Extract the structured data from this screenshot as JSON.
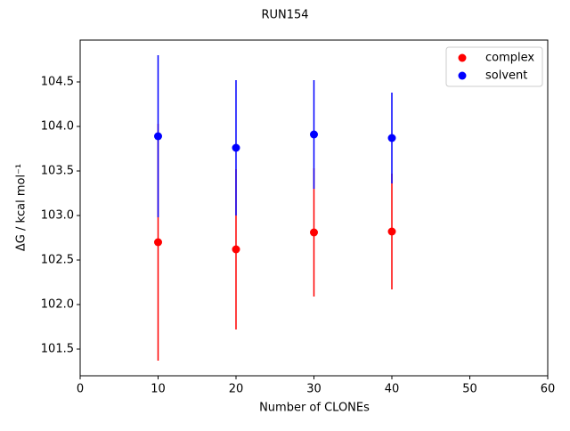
{
  "chart_data": {
    "type": "scatter",
    "title": "RUN154",
    "x_label": "Number of CLONEs",
    "y_label": "ΔG / kcal mol⁻¹",
    "x": [
      10,
      20,
      30,
      40
    ],
    "series": [
      {
        "name": "complex",
        "color": "#ff0000",
        "values": [
          102.7,
          102.62,
          102.81,
          102.82
        ],
        "errors": [
          1.33,
          0.9,
          0.72,
          0.65
        ]
      },
      {
        "name": "solvent",
        "color": "#0000ff",
        "values": [
          103.89,
          103.76,
          103.91,
          103.87
        ],
        "errors": [
          0.91,
          0.76,
          0.61,
          0.51
        ]
      }
    ],
    "xlim": [
      0,
      60
    ],
    "xticks": [
      0,
      10,
      20,
      30,
      40,
      50,
      60
    ],
    "ylim": [
      101.2,
      104.97
    ],
    "yticks": [
      101.5,
      {
        "value": 102,
        "label": "102.0"
      },
      102.5,
      {
        "value": 103,
        "label": "103.0"
      },
      103.5,
      {
        "value": 104,
        "label": "104.0"
      },
      104.5
    ],
    "legend": "upper right"
  }
}
